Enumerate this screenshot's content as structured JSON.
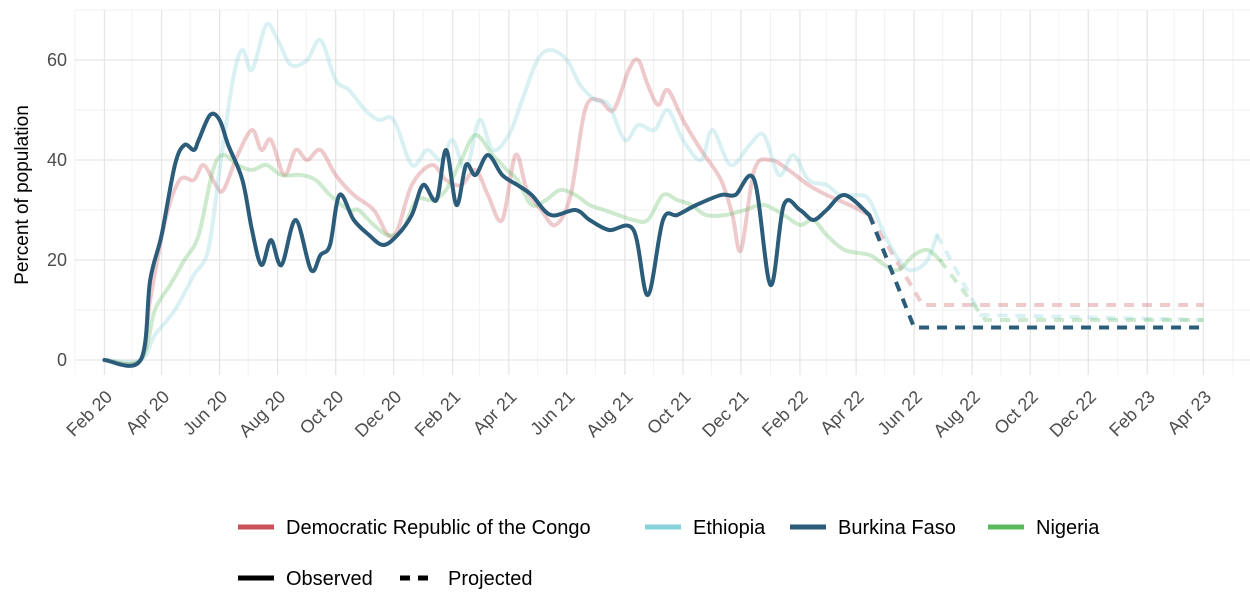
{
  "chart_data": {
    "type": "line",
    "title": "",
    "xlabel": "",
    "ylabel": "Percent of population",
    "ylim": [
      -3,
      70
    ],
    "xlim": [
      "2020-01-01",
      "2023-05-20"
    ],
    "y_ticks": [
      0,
      20,
      40,
      60
    ],
    "y_tick_labels": [
      "0",
      "20",
      "40",
      "60"
    ],
    "x_ticks": [
      "2020-02-01",
      "2020-04-01",
      "2020-06-01",
      "2020-08-01",
      "2020-10-01",
      "2020-12-01",
      "2021-02-01",
      "2021-04-01",
      "2021-06-01",
      "2021-08-01",
      "2021-10-01",
      "2021-12-01",
      "2022-02-01",
      "2022-04-01",
      "2022-06-01",
      "2022-08-01",
      "2022-10-01",
      "2022-12-01",
      "2023-02-01",
      "2023-04-01"
    ],
    "x_tick_labels": [
      "Feb 20",
      "Apr 20",
      "Jun 20",
      "Aug 20",
      "Oct 20",
      "Dec 20",
      "Feb 21",
      "Apr 21",
      "Jun 21",
      "Aug 21",
      "Oct 21",
      "Dec 21",
      "Feb 22",
      "Apr 22",
      "Jun 22",
      "Aug 22",
      "Oct 22",
      "Dec 22",
      "Feb 23",
      "Apr 23"
    ],
    "grid": true,
    "legend_position": "bottom",
    "legend_series_labels": [
      "Democratic Republic of the Congo",
      "Ethiopia",
      "Burkina Faso",
      "Nigeria"
    ],
    "legend_linetype_labels": [
      "Observed",
      "Projected"
    ],
    "series": [
      {
        "name": "Democratic Republic of the Congo",
        "color": "#c9515a",
        "opacity": 0.3,
        "observed": [
          [
            "2020-02-01",
            0
          ],
          [
            "2020-03-10",
            0
          ],
          [
            "2020-03-20",
            12
          ],
          [
            "2020-04-05",
            28
          ],
          [
            "2020-04-20",
            36
          ],
          [
            "2020-05-05",
            36
          ],
          [
            "2020-05-15",
            39
          ],
          [
            "2020-05-28",
            35
          ],
          [
            "2020-06-05",
            34
          ],
          [
            "2020-06-20",
            41
          ],
          [
            "2020-07-05",
            46
          ],
          [
            "2020-07-15",
            42
          ],
          [
            "2020-07-25",
            44
          ],
          [
            "2020-08-08",
            37
          ],
          [
            "2020-08-20",
            42
          ],
          [
            "2020-09-01",
            40
          ],
          [
            "2020-09-15",
            42
          ],
          [
            "2020-10-01",
            37
          ],
          [
            "2020-10-20",
            33
          ],
          [
            "2020-11-10",
            30
          ],
          [
            "2020-11-25",
            25
          ],
          [
            "2020-12-05",
            26
          ],
          [
            "2020-12-20",
            35
          ],
          [
            "2021-01-10",
            39
          ],
          [
            "2021-01-25",
            36
          ],
          [
            "2021-02-10",
            35
          ],
          [
            "2021-02-25",
            38
          ],
          [
            "2021-03-10",
            33
          ],
          [
            "2021-03-25",
            28
          ],
          [
            "2021-04-08",
            41
          ],
          [
            "2021-04-20",
            34
          ],
          [
            "2021-05-05",
            30
          ],
          [
            "2021-05-20",
            27
          ],
          [
            "2021-06-05",
            33
          ],
          [
            "2021-06-20",
            50
          ],
          [
            "2021-07-05",
            52
          ],
          [
            "2021-07-20",
            50
          ],
          [
            "2021-08-05",
            58
          ],
          [
            "2021-08-15",
            60
          ],
          [
            "2021-08-25",
            55
          ],
          [
            "2021-09-05",
            51
          ],
          [
            "2021-09-15",
            54
          ],
          [
            "2021-10-01",
            48
          ],
          [
            "2021-10-20",
            42
          ],
          [
            "2021-11-10",
            36
          ],
          [
            "2021-11-22",
            29
          ],
          [
            "2021-12-01",
            22
          ],
          [
            "2021-12-15",
            38
          ],
          [
            "2022-01-01",
            40
          ],
          [
            "2022-01-20",
            38
          ],
          [
            "2022-02-10",
            35
          ],
          [
            "2022-03-01",
            33
          ],
          [
            "2022-03-25",
            31
          ],
          [
            "2022-04-15",
            29
          ]
        ],
        "projected": [
          [
            "2022-04-15",
            29
          ],
          [
            "2022-06-10",
            11
          ],
          [
            "2023-04-01",
            11
          ]
        ]
      },
      {
        "name": "Ethiopia",
        "color": "#86d1da",
        "opacity": 0.3,
        "observed": [
          [
            "2020-02-01",
            0
          ],
          [
            "2020-03-10",
            0
          ],
          [
            "2020-03-25",
            5
          ],
          [
            "2020-04-15",
            10
          ],
          [
            "2020-05-05",
            17
          ],
          [
            "2020-05-20",
            22
          ],
          [
            "2020-06-01",
            38
          ],
          [
            "2020-06-15",
            56
          ],
          [
            "2020-06-25",
            62
          ],
          [
            "2020-07-05",
            58
          ],
          [
            "2020-07-20",
            67
          ],
          [
            "2020-08-01",
            64
          ],
          [
            "2020-08-15",
            59
          ],
          [
            "2020-09-01",
            60
          ],
          [
            "2020-09-15",
            64
          ],
          [
            "2020-10-01",
            56
          ],
          [
            "2020-10-15",
            54
          ],
          [
            "2020-11-01",
            50
          ],
          [
            "2020-11-15",
            48
          ],
          [
            "2020-12-01",
            48
          ],
          [
            "2020-12-20",
            39
          ],
          [
            "2021-01-05",
            42
          ],
          [
            "2021-01-20",
            40
          ],
          [
            "2021-02-01",
            44
          ],
          [
            "2021-02-15",
            38
          ],
          [
            "2021-03-01",
            48
          ],
          [
            "2021-03-15",
            42
          ],
          [
            "2021-04-01",
            45
          ],
          [
            "2021-04-15",
            52
          ],
          [
            "2021-05-01",
            60
          ],
          [
            "2021-05-15",
            62
          ],
          [
            "2021-06-01",
            60
          ],
          [
            "2021-06-15",
            55
          ],
          [
            "2021-07-01",
            52
          ],
          [
            "2021-07-15",
            51
          ],
          [
            "2021-08-01",
            44
          ],
          [
            "2021-08-15",
            47
          ],
          [
            "2021-09-01",
            46
          ],
          [
            "2021-09-15",
            50
          ],
          [
            "2021-10-01",
            44
          ],
          [
            "2021-10-20",
            40
          ],
          [
            "2021-11-01",
            46
          ],
          [
            "2021-11-20",
            39
          ],
          [
            "2021-12-10",
            43
          ],
          [
            "2021-12-25",
            45
          ],
          [
            "2022-01-10",
            37
          ],
          [
            "2022-01-25",
            41
          ],
          [
            "2022-02-10",
            36
          ],
          [
            "2022-03-01",
            35
          ],
          [
            "2022-03-15",
            33
          ],
          [
            "2022-04-01",
            33
          ],
          [
            "2022-04-15",
            32
          ],
          [
            "2022-05-01",
            25
          ],
          [
            "2022-05-20",
            19
          ],
          [
            "2022-06-01",
            18
          ],
          [
            "2022-06-15",
            20
          ],
          [
            "2022-06-25",
            25
          ]
        ],
        "projected": [
          [
            "2022-06-25",
            25
          ],
          [
            "2022-08-10",
            9
          ],
          [
            "2023-04-01",
            8
          ]
        ]
      },
      {
        "name": "Burkina Faso",
        "color": "#2b5c7a",
        "opacity": 1,
        "observed": [
          [
            "2020-02-01",
            0
          ],
          [
            "2020-03-10",
            0
          ],
          [
            "2020-03-20",
            16
          ],
          [
            "2020-04-01",
            25
          ],
          [
            "2020-04-15",
            39
          ],
          [
            "2020-04-25",
            43
          ],
          [
            "2020-05-05",
            42
          ],
          [
            "2020-05-10",
            44
          ],
          [
            "2020-05-22",
            49
          ],
          [
            "2020-06-01",
            48
          ],
          [
            "2020-06-10",
            43
          ],
          [
            "2020-06-25",
            36
          ],
          [
            "2020-07-05",
            26
          ],
          [
            "2020-07-15",
            19
          ],
          [
            "2020-07-25",
            24
          ],
          [
            "2020-08-05",
            19
          ],
          [
            "2020-08-20",
            28
          ],
          [
            "2020-09-05",
            18
          ],
          [
            "2020-09-15",
            21
          ],
          [
            "2020-09-25",
            23
          ],
          [
            "2020-10-05",
            33
          ],
          [
            "2020-10-20",
            28
          ],
          [
            "2020-11-05",
            25
          ],
          [
            "2020-11-20",
            23
          ],
          [
            "2020-12-05",
            25
          ],
          [
            "2020-12-20",
            29
          ],
          [
            "2021-01-01",
            35
          ],
          [
            "2021-01-15",
            32
          ],
          [
            "2021-01-25",
            42
          ],
          [
            "2021-02-05",
            31
          ],
          [
            "2021-02-15",
            39
          ],
          [
            "2021-02-25",
            37
          ],
          [
            "2021-03-10",
            41
          ],
          [
            "2021-03-25",
            37
          ],
          [
            "2021-04-10",
            35
          ],
          [
            "2021-04-25",
            33
          ],
          [
            "2021-05-15",
            29
          ],
          [
            "2021-06-10",
            30
          ],
          [
            "2021-06-25",
            28
          ],
          [
            "2021-07-15",
            26
          ],
          [
            "2021-08-10",
            26
          ],
          [
            "2021-08-25",
            13
          ],
          [
            "2021-09-10",
            28
          ],
          [
            "2021-09-25",
            29
          ],
          [
            "2021-10-15",
            31
          ],
          [
            "2021-11-10",
            33
          ],
          [
            "2021-11-25",
            33
          ],
          [
            "2021-12-15",
            36
          ],
          [
            "2022-01-01",
            15
          ],
          [
            "2022-01-15",
            31
          ],
          [
            "2022-02-01",
            30
          ],
          [
            "2022-02-15",
            28
          ],
          [
            "2022-03-01",
            30
          ],
          [
            "2022-03-20",
            33
          ],
          [
            "2022-04-15",
            29
          ]
        ],
        "projected": [
          [
            "2022-04-15",
            29
          ],
          [
            "2022-06-01",
            6.5
          ],
          [
            "2023-04-01",
            6.5
          ]
        ]
      },
      {
        "name": "Nigeria",
        "color": "#5cb85c",
        "opacity": 0.3,
        "observed": [
          [
            "2020-02-01",
            0
          ],
          [
            "2020-03-10",
            0
          ],
          [
            "2020-03-25",
            10
          ],
          [
            "2020-04-10",
            15
          ],
          [
            "2020-04-25",
            20
          ],
          [
            "2020-05-10",
            25
          ],
          [
            "2020-05-25",
            38
          ],
          [
            "2020-06-05",
            41
          ],
          [
            "2020-06-20",
            39
          ],
          [
            "2020-07-05",
            38
          ],
          [
            "2020-07-20",
            39
          ],
          [
            "2020-08-05",
            37
          ],
          [
            "2020-08-25",
            37
          ],
          [
            "2020-09-10",
            36
          ],
          [
            "2020-09-25",
            33
          ],
          [
            "2020-10-15",
            30
          ],
          [
            "2020-10-25",
            30
          ],
          [
            "2020-11-10",
            27
          ],
          [
            "2020-11-25",
            25
          ],
          [
            "2020-12-10",
            26
          ],
          [
            "2020-12-25",
            32
          ],
          [
            "2021-01-10",
            32
          ],
          [
            "2021-01-25",
            34
          ],
          [
            "2021-02-10",
            40
          ],
          [
            "2021-02-25",
            45
          ],
          [
            "2021-03-15",
            41
          ],
          [
            "2021-03-30",
            38
          ],
          [
            "2021-04-10",
            36
          ],
          [
            "2021-04-25",
            31
          ],
          [
            "2021-05-10",
            32
          ],
          [
            "2021-05-25",
            34
          ],
          [
            "2021-06-10",
            33
          ],
          [
            "2021-06-25",
            31
          ],
          [
            "2021-07-10",
            30
          ],
          [
            "2021-07-25",
            29
          ],
          [
            "2021-08-10",
            28
          ],
          [
            "2021-08-25",
            28
          ],
          [
            "2021-09-10",
            33
          ],
          [
            "2021-09-25",
            32
          ],
          [
            "2021-10-10",
            31
          ],
          [
            "2021-10-25",
            29
          ],
          [
            "2021-11-15",
            29
          ],
          [
            "2021-12-05",
            30
          ],
          [
            "2021-12-25",
            31
          ],
          [
            "2022-01-15",
            29
          ],
          [
            "2022-02-01",
            27
          ],
          [
            "2022-02-15",
            28
          ],
          [
            "2022-03-01",
            25
          ],
          [
            "2022-03-20",
            22
          ],
          [
            "2022-04-15",
            21
          ],
          [
            "2022-05-01",
            19
          ],
          [
            "2022-05-15",
            18
          ],
          [
            "2022-06-01",
            21
          ],
          [
            "2022-06-15",
            22
          ],
          [
            "2022-06-28",
            20
          ]
        ],
        "projected": [
          [
            "2022-06-28",
            20
          ],
          [
            "2022-08-15",
            8
          ],
          [
            "2023-04-01",
            8
          ]
        ]
      }
    ]
  }
}
